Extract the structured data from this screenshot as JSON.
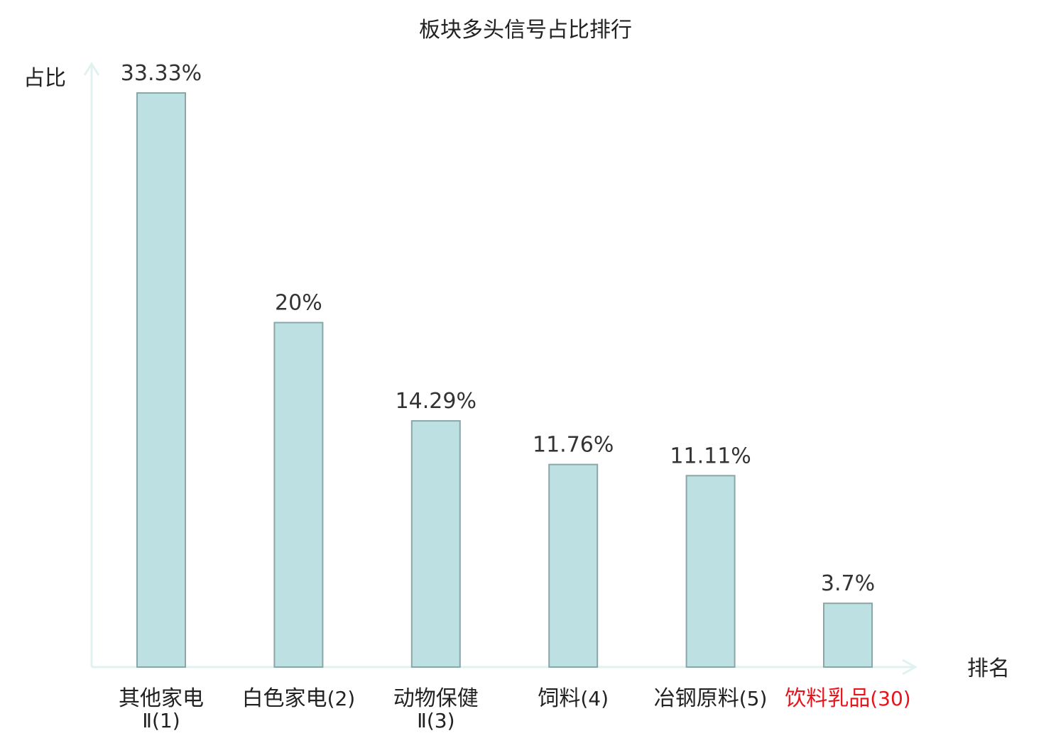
{
  "chart_data": {
    "type": "bar",
    "title": "板块多头信号占比排行",
    "ylabel": "占比",
    "xlabel": "排名",
    "ylim": [
      0,
      35
    ],
    "grid": false,
    "categories": [
      {
        "name": "其他家电",
        "rank_text": "Ⅱ(1)",
        "multiline": true,
        "highlight": false
      },
      {
        "name": "白色家电",
        "rank_text": "(2)",
        "multiline": false,
        "highlight": false
      },
      {
        "name": "动物保健",
        "rank_text": "Ⅱ(3)",
        "multiline": true,
        "highlight": false
      },
      {
        "name": "饲料",
        "rank_text": "(4)",
        "multiline": false,
        "highlight": false
      },
      {
        "name": "冶钢原料",
        "rank_text": "(5)",
        "multiline": false,
        "highlight": false
      },
      {
        "name": "饮料乳品",
        "rank_text": "(30)",
        "multiline": false,
        "highlight": true
      }
    ],
    "values": [
      33.33,
      20,
      14.29,
      11.76,
      11.11,
      3.7
    ],
    "value_labels": [
      "33.33%",
      "20%",
      "14.29%",
      "11.76%",
      "11.11%",
      "3.7%"
    ],
    "colors": {
      "bar_fill": "#bde0e3",
      "bar_stroke": "#8aa7a8",
      "axis": "#e0f2f0",
      "text": "#222222",
      "highlight": "#e8141c"
    }
  }
}
